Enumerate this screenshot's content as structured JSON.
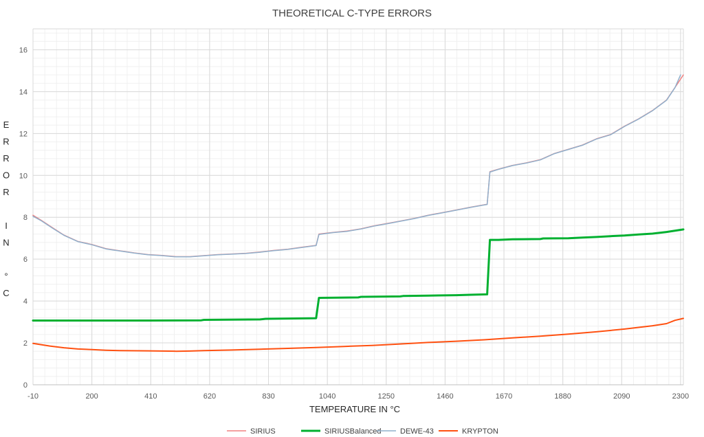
{
  "chart_data": {
    "type": "line",
    "title": "THEORETICAL C-TYPE ERRORS",
    "xlabel": "TEMPERATURE IN °C",
    "ylabel": "ERROR IN °C",
    "ylabel_chars": [
      "E",
      "R",
      "R",
      "O",
      "R",
      "",
      "I",
      "N",
      "",
      "°",
      "C"
    ],
    "xlim": [
      -10,
      2310
    ],
    "ylim": [
      0,
      17
    ],
    "xticks": [
      -10,
      200,
      410,
      620,
      830,
      1040,
      1250,
      1460,
      1670,
      1880,
      2090,
      2300
    ],
    "yticks": [
      0,
      2,
      4,
      6,
      8,
      10,
      12,
      14,
      16
    ],
    "grid": true,
    "legend_position": "bottom",
    "series": [
      {
        "name": "SIRIUS",
        "color": "#f08080",
        "width": 1.5,
        "points": [
          [
            -10,
            8.1
          ],
          [
            20,
            7.85
          ],
          [
            60,
            7.5
          ],
          [
            100,
            7.15
          ],
          [
            150,
            6.85
          ],
          [
            200,
            6.7
          ],
          [
            250,
            6.5
          ],
          [
            300,
            6.4
          ],
          [
            350,
            6.3
          ],
          [
            400,
            6.22
          ],
          [
            450,
            6.18
          ],
          [
            500,
            6.12
          ],
          [
            550,
            6.12
          ],
          [
            600,
            6.17
          ],
          [
            650,
            6.22
          ],
          [
            700,
            6.25
          ],
          [
            750,
            6.28
          ],
          [
            800,
            6.34
          ],
          [
            850,
            6.42
          ],
          [
            900,
            6.48
          ],
          [
            950,
            6.57
          ],
          [
            1000,
            6.66
          ],
          [
            1010,
            7.2
          ],
          [
            1060,
            7.28
          ],
          [
            1110,
            7.34
          ],
          [
            1160,
            7.45
          ],
          [
            1210,
            7.6
          ],
          [
            1260,
            7.72
          ],
          [
            1300,
            7.82
          ],
          [
            1350,
            7.95
          ],
          [
            1400,
            8.1
          ],
          [
            1450,
            8.22
          ],
          [
            1500,
            8.35
          ],
          [
            1550,
            8.48
          ],
          [
            1600,
            8.6
          ],
          [
            1610,
            8.62
          ],
          [
            1620,
            10.18
          ],
          [
            1650,
            10.3
          ],
          [
            1700,
            10.48
          ],
          [
            1750,
            10.6
          ],
          [
            1800,
            10.75
          ],
          [
            1850,
            11.05
          ],
          [
            1900,
            11.25
          ],
          [
            1950,
            11.45
          ],
          [
            2000,
            11.75
          ],
          [
            2050,
            11.95
          ],
          [
            2100,
            12.35
          ],
          [
            2150,
            12.7
          ],
          [
            2200,
            13.1
          ],
          [
            2250,
            13.6
          ],
          [
            2280,
            14.2
          ],
          [
            2310,
            14.8
          ]
        ]
      },
      {
        "name": "SIRIUSBalanced",
        "color": "#00b030",
        "width": 3,
        "points": [
          [
            -10,
            3.07
          ],
          [
            200,
            3.07
          ],
          [
            400,
            3.07
          ],
          [
            590,
            3.08
          ],
          [
            600,
            3.1
          ],
          [
            800,
            3.12
          ],
          [
            820,
            3.15
          ],
          [
            1000,
            3.18
          ],
          [
            1010,
            4.15
          ],
          [
            1150,
            4.17
          ],
          [
            1160,
            4.2
          ],
          [
            1300,
            4.22
          ],
          [
            1310,
            4.24
          ],
          [
            1400,
            4.26
          ],
          [
            1500,
            4.28
          ],
          [
            1550,
            4.3
          ],
          [
            1610,
            4.32
          ],
          [
            1620,
            6.92
          ],
          [
            1650,
            6.92
          ],
          [
            1700,
            6.95
          ],
          [
            1800,
            6.96
          ],
          [
            1810,
            6.99
          ],
          [
            1900,
            7.0
          ],
          [
            1950,
            7.03
          ],
          [
            2000,
            7.06
          ],
          [
            2050,
            7.1
          ],
          [
            2100,
            7.13
          ],
          [
            2150,
            7.18
          ],
          [
            2200,
            7.22
          ],
          [
            2250,
            7.3
          ],
          [
            2310,
            7.42
          ]
        ]
      },
      {
        "name": "DEWE-43",
        "color": "#8fb0cc",
        "width": 1.5,
        "points": [
          [
            -10,
            8.05
          ],
          [
            20,
            7.83
          ],
          [
            60,
            7.48
          ],
          [
            100,
            7.14
          ],
          [
            150,
            6.84
          ],
          [
            200,
            6.69
          ],
          [
            250,
            6.49
          ],
          [
            300,
            6.39
          ],
          [
            350,
            6.29
          ],
          [
            400,
            6.21
          ],
          [
            450,
            6.17
          ],
          [
            500,
            6.11
          ],
          [
            550,
            6.11
          ],
          [
            600,
            6.16
          ],
          [
            650,
            6.21
          ],
          [
            700,
            6.24
          ],
          [
            750,
            6.27
          ],
          [
            800,
            6.33
          ],
          [
            850,
            6.41
          ],
          [
            900,
            6.47
          ],
          [
            950,
            6.56
          ],
          [
            1000,
            6.65
          ],
          [
            1010,
            7.18
          ],
          [
            1060,
            7.27
          ],
          [
            1110,
            7.33
          ],
          [
            1160,
            7.44
          ],
          [
            1210,
            7.59
          ],
          [
            1260,
            7.71
          ],
          [
            1300,
            7.81
          ],
          [
            1350,
            7.94
          ],
          [
            1400,
            8.09
          ],
          [
            1450,
            8.21
          ],
          [
            1500,
            8.34
          ],
          [
            1550,
            8.47
          ],
          [
            1600,
            8.59
          ],
          [
            1610,
            8.61
          ],
          [
            1620,
            10.16
          ],
          [
            1650,
            10.29
          ],
          [
            1700,
            10.47
          ],
          [
            1750,
            10.59
          ],
          [
            1800,
            10.74
          ],
          [
            1850,
            11.04
          ],
          [
            1900,
            11.24
          ],
          [
            1950,
            11.44
          ],
          [
            2000,
            11.74
          ],
          [
            2050,
            11.94
          ],
          [
            2100,
            12.34
          ],
          [
            2150,
            12.69
          ],
          [
            2200,
            13.09
          ],
          [
            2250,
            13.59
          ],
          [
            2280,
            14.19
          ],
          [
            2300,
            14.8
          ]
        ]
      },
      {
        "name": "KRYPTON",
        "color": "#ff5010",
        "width": 2,
        "points": [
          [
            -10,
            1.98
          ],
          [
            50,
            1.85
          ],
          [
            100,
            1.77
          ],
          [
            150,
            1.71
          ],
          [
            200,
            1.68
          ],
          [
            250,
            1.65
          ],
          [
            300,
            1.63
          ],
          [
            400,
            1.62
          ],
          [
            500,
            1.6
          ],
          [
            550,
            1.61
          ],
          [
            600,
            1.63
          ],
          [
            700,
            1.66
          ],
          [
            800,
            1.7
          ],
          [
            900,
            1.74
          ],
          [
            1000,
            1.78
          ],
          [
            1100,
            1.83
          ],
          [
            1200,
            1.88
          ],
          [
            1300,
            1.95
          ],
          [
            1400,
            2.02
          ],
          [
            1500,
            2.08
          ],
          [
            1600,
            2.15
          ],
          [
            1700,
            2.24
          ],
          [
            1800,
            2.32
          ],
          [
            1900,
            2.42
          ],
          [
            2000,
            2.53
          ],
          [
            2100,
            2.66
          ],
          [
            2200,
            2.82
          ],
          [
            2250,
            2.92
          ],
          [
            2280,
            3.08
          ],
          [
            2310,
            3.17
          ]
        ]
      }
    ]
  }
}
